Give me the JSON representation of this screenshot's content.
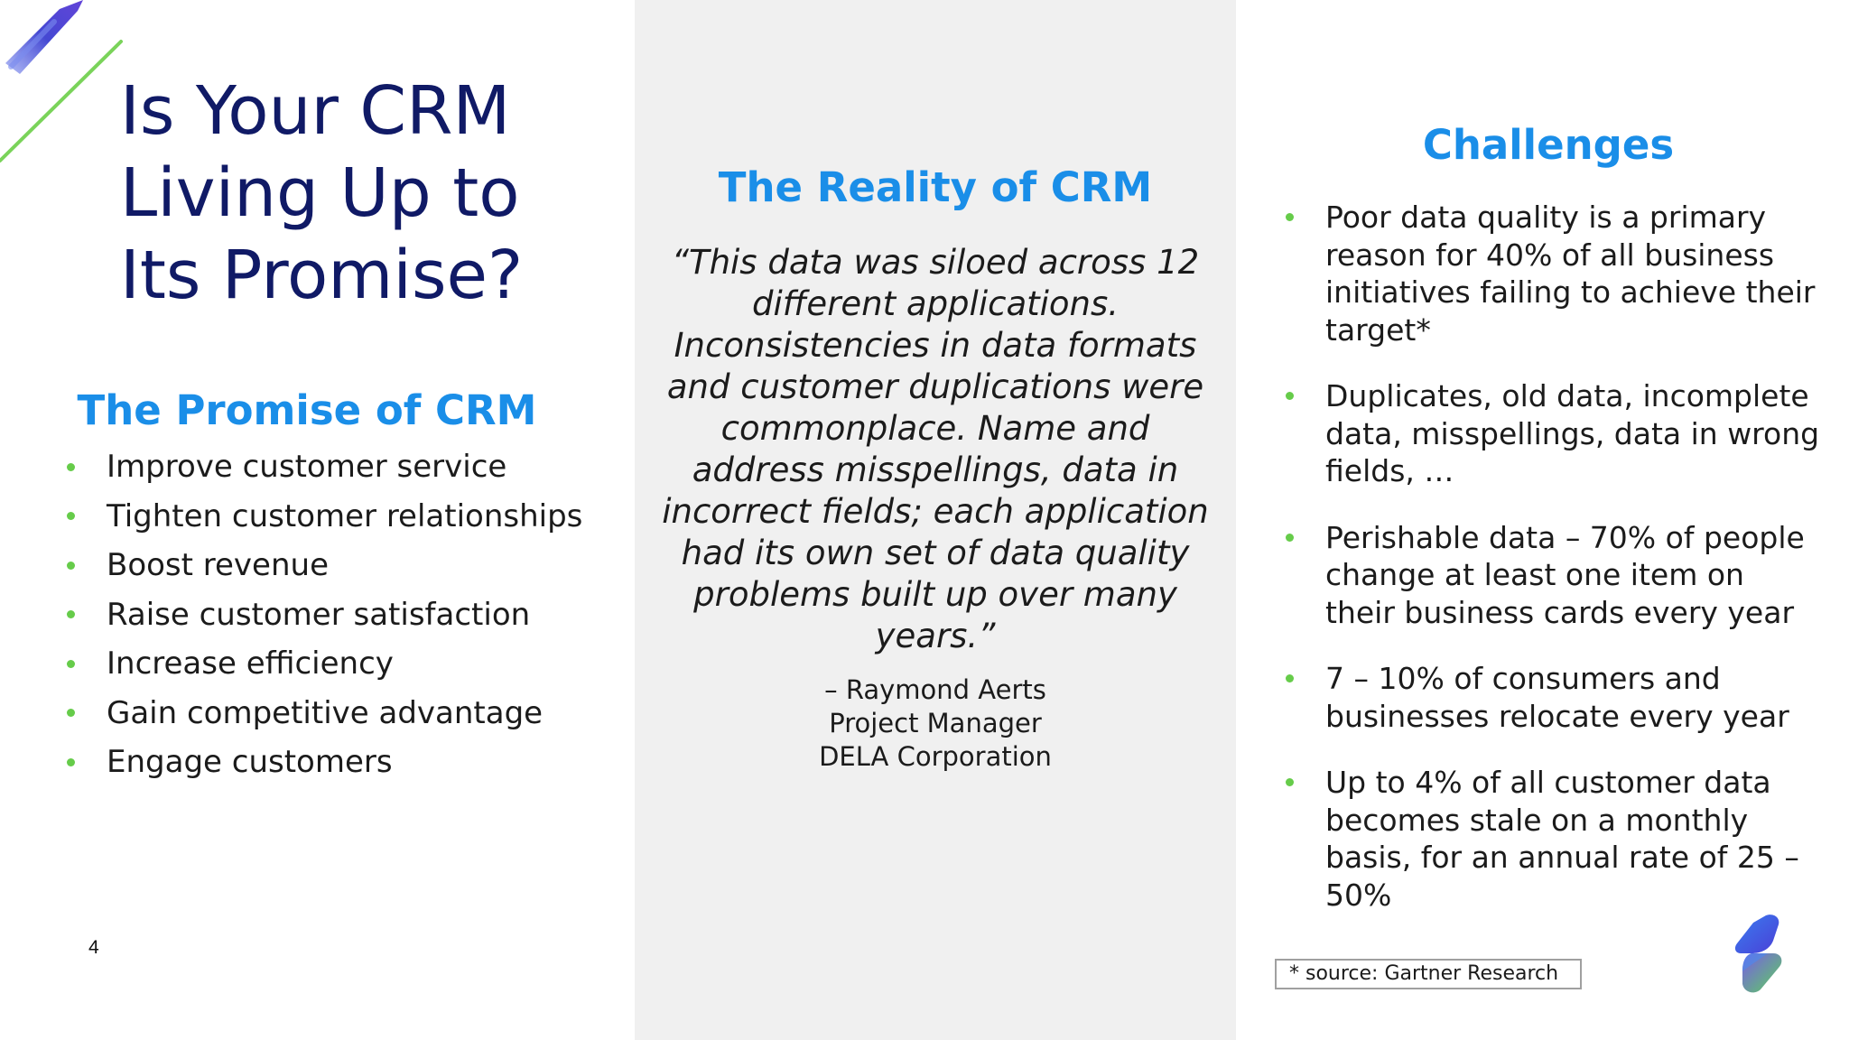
{
  "slide": {
    "page_number": "4",
    "colors": {
      "title": "#101a66",
      "heading": "#1a8ee8",
      "bullet": "#66cc4a",
      "middle_panel": "#f0f0f0"
    }
  },
  "left": {
    "title": "Is Your CRM Living Up to Its Promise?",
    "promise_heading": "The Promise of CRM",
    "promise_items": [
      "Improve customer service",
      "Tighten customer relationships",
      "Boost revenue",
      "Raise customer satisfaction",
      "Increase efficiency",
      "Gain competitive advantage",
      "Engage customers"
    ]
  },
  "middle": {
    "heading": "The Reality of CRM",
    "quote": "“This data was siloed across 12 different applications. Inconsistencies in data formats and customer duplications were commonplace. Name and address misspellings, data in incorrect fields; each application had its own set of data quality problems built up over many years.”",
    "attribution": {
      "name": "– Raymond Aerts",
      "role": "Project Manager",
      "company": "DELA Corporation"
    }
  },
  "right": {
    "heading": "Challenges",
    "items": [
      "Poor data quality is a primary reason for 40% of all business initiatives failing to achieve their target*",
      "Duplicates, old data, incomplete data, misspellings, data in wrong fields, …",
      "Perishable data – 70% of people change at least one item on their business cards every year",
      "7 – 10% of consumers and businesses relocate every year",
      "Up to 4% of all customer data becomes stale on a monthly basis, for an annual rate of 25 – 50%"
    ],
    "source_note": "* source: Gartner Research"
  },
  "icons": {
    "decoration": "brush-stroke-decoration",
    "logo": "company-logo-icon",
    "bullet": "bullet-dot-icon"
  }
}
